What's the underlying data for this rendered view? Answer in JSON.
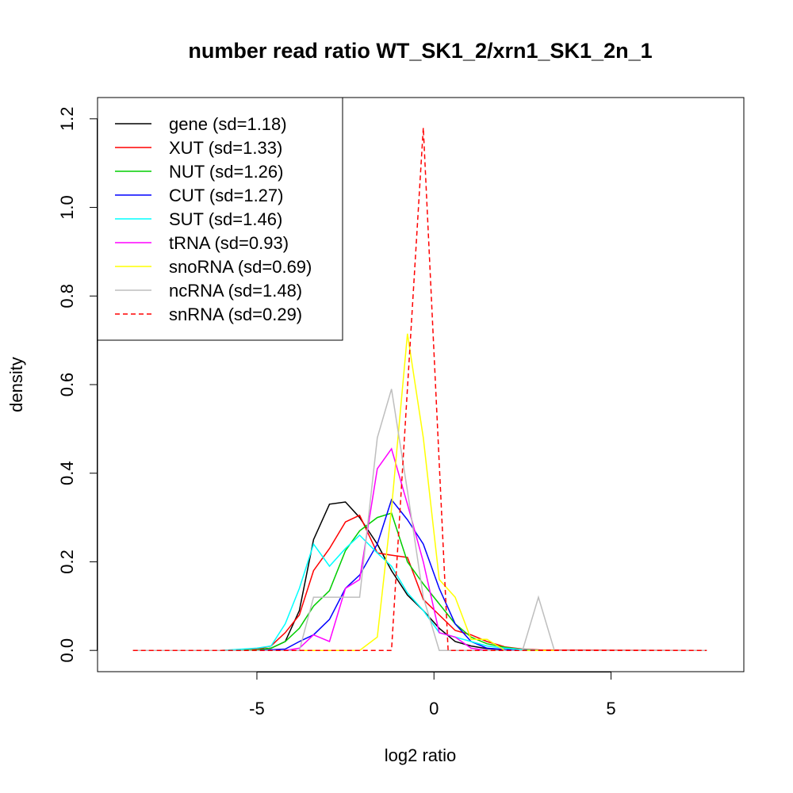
{
  "chart_data": {
    "type": "line",
    "title": "number read ratio WT_SK1_2/xrn1_SK1_2n_1",
    "xlabel": "log2 ratio",
    "ylabel": "density",
    "xlim": [
      -9.5,
      8.75
    ],
    "ylim": [
      -0.048,
      1.248
    ],
    "x_ticks": [
      -5,
      0,
      5
    ],
    "x_tick_labels": [
      "-5",
      "0",
      "5"
    ],
    "y_ticks": [
      0.0,
      0.2,
      0.4,
      0.6,
      0.8,
      1.0,
      1.2
    ],
    "y_tick_labels": [
      "0.0",
      "0.2",
      "0.4",
      "0.6",
      "0.8",
      "1.0",
      "1.2"
    ],
    "grid": false,
    "legend_position": "top-left",
    "series": [
      {
        "name": "gene (sd=1.18)",
        "color": "#000000",
        "dash": "solid",
        "points": [
          [
            -8.5,
            0
          ],
          [
            -6,
            0
          ],
          [
            -5,
            0.002
          ],
          [
            -4.6,
            0.005
          ],
          [
            -4.2,
            0.02
          ],
          [
            -3.8,
            0.09
          ],
          [
            -3.4,
            0.25
          ],
          [
            -2.95,
            0.33
          ],
          [
            -2.5,
            0.335
          ],
          [
            -2.1,
            0.3
          ],
          [
            -1.6,
            0.24
          ],
          [
            -1.2,
            0.18
          ],
          [
            -0.75,
            0.125
          ],
          [
            -0.3,
            0.09
          ],
          [
            0.15,
            0.05
          ],
          [
            0.6,
            0.02
          ],
          [
            1.05,
            0.01
          ],
          [
            1.5,
            0.004
          ],
          [
            2.0,
            0.002
          ],
          [
            3.0,
            0
          ],
          [
            7.7,
            0
          ]
        ]
      },
      {
        "name": "XUT (sd=1.33)",
        "color": "#ff0000",
        "dash": "solid",
        "points": [
          [
            -8.5,
            0
          ],
          [
            -6,
            0
          ],
          [
            -5,
            0.003
          ],
          [
            -4.6,
            0.01
          ],
          [
            -4.2,
            0.04
          ],
          [
            -3.8,
            0.08
          ],
          [
            -3.4,
            0.18
          ],
          [
            -2.95,
            0.23
          ],
          [
            -2.5,
            0.29
          ],
          [
            -2.1,
            0.305
          ],
          [
            -1.6,
            0.22
          ],
          [
            -1.2,
            0.215
          ],
          [
            -0.75,
            0.21
          ],
          [
            -0.3,
            0.115
          ],
          [
            0.15,
            0.08
          ],
          [
            0.6,
            0.045
          ],
          [
            1.05,
            0.035
          ],
          [
            1.5,
            0.02
          ],
          [
            2.0,
            0.008
          ],
          [
            2.5,
            0.003
          ],
          [
            3.0,
            0.001
          ],
          [
            7.7,
            0
          ]
        ]
      },
      {
        "name": "NUT (sd=1.26)",
        "color": "#00cd00",
        "dash": "solid",
        "points": [
          [
            -8.5,
            0
          ],
          [
            -6,
            0
          ],
          [
            -5,
            0.001
          ],
          [
            -4.6,
            0.005
          ],
          [
            -4.2,
            0.02
          ],
          [
            -3.8,
            0.05
          ],
          [
            -3.4,
            0.1
          ],
          [
            -2.95,
            0.135
          ],
          [
            -2.5,
            0.225
          ],
          [
            -2.1,
            0.27
          ],
          [
            -1.6,
            0.3
          ],
          [
            -1.2,
            0.31
          ],
          [
            -0.75,
            0.2
          ],
          [
            -0.3,
            0.15
          ],
          [
            0.15,
            0.105
          ],
          [
            0.6,
            0.06
          ],
          [
            1.05,
            0.03
          ],
          [
            1.5,
            0.015
          ],
          [
            2.0,
            0.007
          ],
          [
            2.5,
            0.002
          ],
          [
            3.0,
            0
          ],
          [
            7.7,
            0
          ]
        ]
      },
      {
        "name": "CUT (sd=1.27)",
        "color": "#0000ff",
        "dash": "solid",
        "points": [
          [
            -8.5,
            0
          ],
          [
            -6,
            0
          ],
          [
            -5,
            0
          ],
          [
            -4.2,
            0.003
          ],
          [
            -3.8,
            0.02
          ],
          [
            -3.4,
            0.035
          ],
          [
            -2.95,
            0.07
          ],
          [
            -2.5,
            0.14
          ],
          [
            -2.1,
            0.17
          ],
          [
            -1.6,
            0.24
          ],
          [
            -1.2,
            0.34
          ],
          [
            -0.75,
            0.295
          ],
          [
            -0.3,
            0.24
          ],
          [
            0.15,
            0.14
          ],
          [
            0.6,
            0.06
          ],
          [
            1.05,
            0.02
          ],
          [
            1.5,
            0.005
          ],
          [
            2.0,
            0.002
          ],
          [
            3.0,
            0
          ],
          [
            7.7,
            0
          ]
        ]
      },
      {
        "name": "SUT (sd=1.46)",
        "color": "#00ffff",
        "dash": "solid",
        "points": [
          [
            -8.5,
            0
          ],
          [
            -6,
            0
          ],
          [
            -5,
            0.005
          ],
          [
            -4.6,
            0.01
          ],
          [
            -4.2,
            0.06
          ],
          [
            -3.8,
            0.14
          ],
          [
            -3.4,
            0.24
          ],
          [
            -2.95,
            0.19
          ],
          [
            -2.5,
            0.23
          ],
          [
            -2.1,
            0.26
          ],
          [
            -1.6,
            0.22
          ],
          [
            -1.2,
            0.19
          ],
          [
            -0.75,
            0.13
          ],
          [
            -0.3,
            0.09
          ],
          [
            0.15,
            0.04
          ],
          [
            0.6,
            0.03
          ],
          [
            1.05,
            0.02
          ],
          [
            1.5,
            0.01
          ],
          [
            2.0,
            0.005
          ],
          [
            2.5,
            0.002
          ],
          [
            3.0,
            0
          ],
          [
            7.7,
            0
          ]
        ]
      },
      {
        "name": "tRNA (sd=0.93)",
        "color": "#ff00ff",
        "dash": "solid",
        "points": [
          [
            -8.5,
            0
          ],
          [
            -4.2,
            0
          ],
          [
            -3.8,
            0.005
          ],
          [
            -3.4,
            0.035
          ],
          [
            -2.95,
            0.02
          ],
          [
            -2.5,
            0.14
          ],
          [
            -2.1,
            0.16
          ],
          [
            -1.6,
            0.41
          ],
          [
            -1.2,
            0.455
          ],
          [
            -0.75,
            0.33
          ],
          [
            -0.3,
            0.2
          ],
          [
            0.15,
            0.04
          ],
          [
            0.6,
            0.03
          ],
          [
            1.05,
            0.005
          ],
          [
            1.5,
            0
          ],
          [
            7.7,
            0
          ]
        ]
      },
      {
        "name": "snoRNA (sd=0.69)",
        "color": "#ffff00",
        "dash": "solid",
        "points": [
          [
            -8.5,
            0
          ],
          [
            -2.1,
            0
          ],
          [
            -1.6,
            0.03
          ],
          [
            -1.2,
            0.32
          ],
          [
            -0.75,
            0.715
          ],
          [
            -0.3,
            0.48
          ],
          [
            0.15,
            0.16
          ],
          [
            0.6,
            0.12
          ],
          [
            1.05,
            0.025
          ],
          [
            1.5,
            0.025
          ],
          [
            2.0,
            0
          ],
          [
            7.7,
            0
          ]
        ]
      },
      {
        "name": "ncRNA (sd=1.48)",
        "color": "#bebebe",
        "dash": "solid",
        "points": [
          [
            -8.5,
            0
          ],
          [
            -3.8,
            0
          ],
          [
            -3.4,
            0.12
          ],
          [
            -2.95,
            0.12
          ],
          [
            -2.5,
            0.12
          ],
          [
            -2.1,
            0.12
          ],
          [
            -1.6,
            0.48
          ],
          [
            -1.2,
            0.59
          ],
          [
            -0.75,
            0.36
          ],
          [
            -0.3,
            0.12
          ],
          [
            0.15,
            0
          ],
          [
            2.5,
            0
          ],
          [
            2.95,
            0.12
          ],
          [
            3.4,
            0
          ],
          [
            7.7,
            0
          ]
        ]
      },
      {
        "name": "snRNA (sd=0.29)",
        "color": "#ff0000",
        "dash": "dashed",
        "points": [
          [
            -8.5,
            0
          ],
          [
            -1.35,
            0
          ],
          [
            -1.2,
            0
          ],
          [
            -0.3,
            1.18
          ],
          [
            0.4,
            0
          ],
          [
            7.7,
            0
          ]
        ]
      }
    ]
  }
}
